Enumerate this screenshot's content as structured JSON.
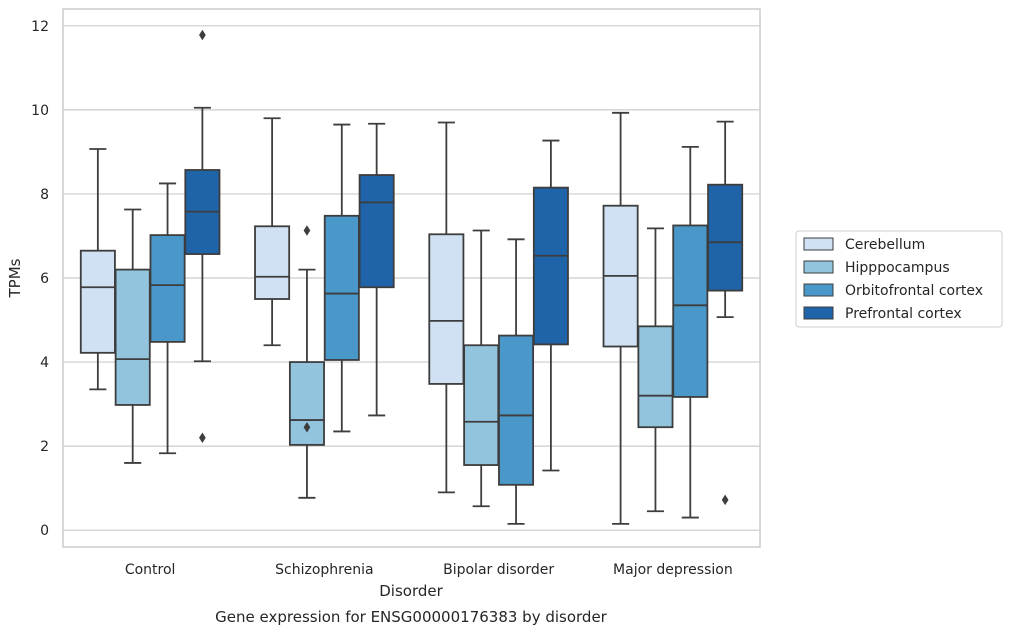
{
  "chart_data": {
    "type": "box",
    "title": "",
    "caption": "Gene expression for ENSG00000176383 by disorder",
    "xlabel": "Disorder",
    "ylabel": "TPMs",
    "ylim": [
      -0.4,
      12.4
    ],
    "yticks": [
      0,
      2,
      4,
      6,
      8,
      10,
      12
    ],
    "grid": true,
    "legend_position": "right",
    "categories": [
      "Control",
      "Schizophrenia",
      "Bipolar disorder",
      "Major depression"
    ],
    "series": [
      {
        "name": "Cerebellum",
        "color": "#cfe1f2",
        "boxes": [
          {
            "whisker_low": 3.35,
            "q1": 4.22,
            "median": 5.78,
            "q3": 6.65,
            "whisker_high": 9.07,
            "outliers": []
          },
          {
            "whisker_low": 4.4,
            "q1": 5.5,
            "median": 6.03,
            "q3": 7.23,
            "whisker_high": 9.8,
            "outliers": []
          },
          {
            "whisker_low": 0.9,
            "q1": 3.48,
            "median": 4.98,
            "q3": 7.04,
            "whisker_high": 9.7,
            "outliers": []
          },
          {
            "whisker_low": 0.15,
            "q1": 4.37,
            "median": 6.05,
            "q3": 7.72,
            "whisker_high": 9.93,
            "outliers": []
          }
        ]
      },
      {
        "name": "Hipppocampus",
        "color": "#93c4de",
        "boxes": [
          {
            "whisker_low": 1.6,
            "q1": 2.98,
            "median": 4.07,
            "q3": 6.2,
            "whisker_high": 7.63,
            "outliers": []
          },
          {
            "whisker_low": 0.77,
            "q1": 2.03,
            "median": 2.62,
            "q3": 4.0,
            "whisker_high": 6.2,
            "outliers": [
              2.45,
              7.13
            ]
          },
          {
            "whisker_low": 0.57,
            "q1": 1.55,
            "median": 2.58,
            "q3": 4.4,
            "whisker_high": 7.13,
            "outliers": []
          },
          {
            "whisker_low": 0.45,
            "q1": 2.45,
            "median": 3.2,
            "q3": 4.85,
            "whisker_high": 7.18,
            "outliers": []
          }
        ]
      },
      {
        "name": "Orbitofrontal cortex",
        "color": "#4a98c9",
        "boxes": [
          {
            "whisker_low": 1.83,
            "q1": 4.48,
            "median": 5.83,
            "q3": 7.02,
            "whisker_high": 8.25,
            "outliers": []
          },
          {
            "whisker_low": 2.35,
            "q1": 4.05,
            "median": 5.63,
            "q3": 7.48,
            "whisker_high": 9.65,
            "outliers": []
          },
          {
            "whisker_low": 0.15,
            "q1": 1.08,
            "median": 2.73,
            "q3": 4.63,
            "whisker_high": 6.92,
            "outliers": []
          },
          {
            "whisker_low": 0.3,
            "q1": 3.17,
            "median": 5.35,
            "q3": 7.25,
            "whisker_high": 9.12,
            "outliers": []
          }
        ]
      },
      {
        "name": "Prefrontal cortex",
        "color": "#1f63a8",
        "boxes": [
          {
            "whisker_low": 4.02,
            "q1": 6.57,
            "median": 7.58,
            "q3": 8.57,
            "whisker_high": 10.05,
            "outliers": [
              2.2,
              11.78
            ]
          },
          {
            "whisker_low": 2.73,
            "q1": 5.78,
            "median": 7.8,
            "q3": 8.45,
            "whisker_high": 9.67,
            "outliers": []
          },
          {
            "whisker_low": 1.42,
            "q1": 4.42,
            "median": 6.53,
            "q3": 8.15,
            "whisker_high": 9.27,
            "outliers": []
          },
          {
            "whisker_low": 5.07,
            "q1": 5.7,
            "median": 6.85,
            "q3": 8.22,
            "whisker_high": 9.72,
            "outliers": [
              0.72
            ]
          }
        ]
      }
    ]
  }
}
